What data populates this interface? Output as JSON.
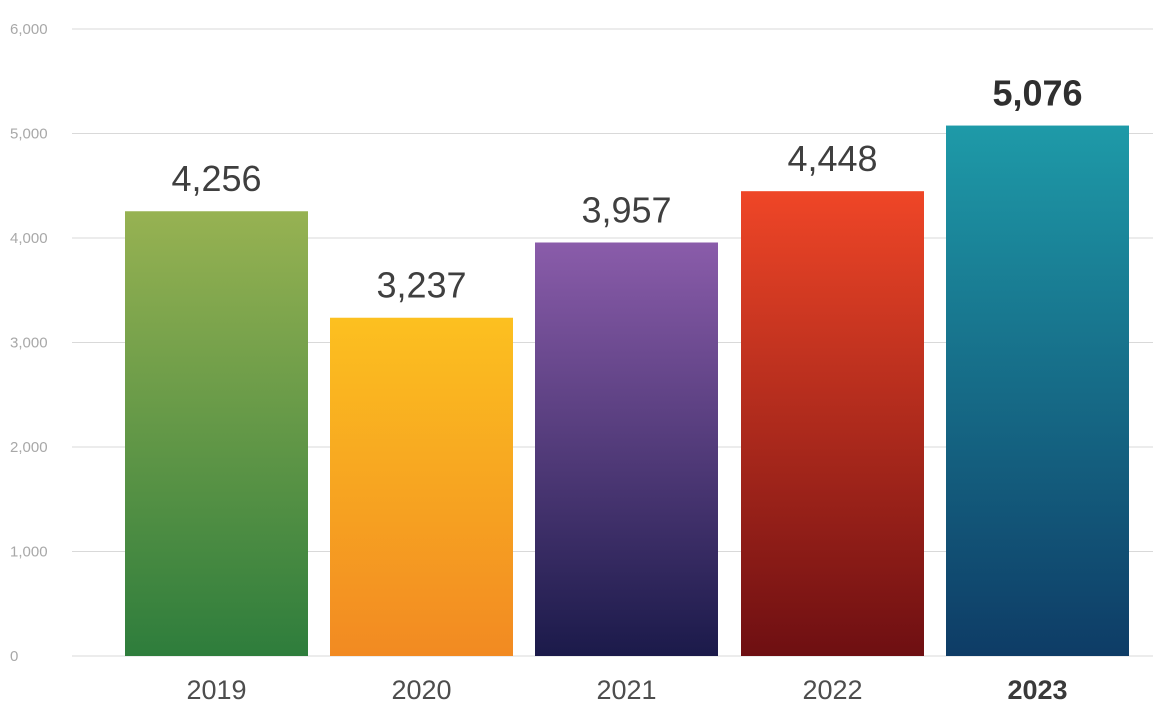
{
  "chart_data": {
    "type": "bar",
    "categories": [
      "2019",
      "2020",
      "2021",
      "2022",
      "2023"
    ],
    "values": [
      4256,
      3237,
      3957,
      4448,
      5076
    ],
    "value_labels": [
      "4,256",
      "3,237",
      "3,957",
      "4,448",
      "5,076"
    ],
    "highlight_index": 4,
    "ylim": [
      0,
      6000
    ],
    "y_ticks": [
      0,
      1000,
      2000,
      3000,
      4000,
      5000,
      6000
    ],
    "y_tick_labels": [
      "0",
      "1,000",
      "2,000",
      "3,000",
      "4,000",
      "5,000",
      "6,000"
    ],
    "grid": true,
    "title": "",
    "xlabel": "",
    "ylabel": "",
    "bar_colors": [
      {
        "top": "#97b252",
        "bottom": "#2e7d3c"
      },
      {
        "top": "#fcc020",
        "bottom": "#f28a22"
      },
      {
        "top": "#8a5caa",
        "bottom": "#1b1a4a"
      },
      {
        "top": "#ef4627",
        "bottom": "#6e0f12"
      },
      {
        "top": "#1e9aa8",
        "bottom": "#0e3c66"
      }
    ]
  }
}
